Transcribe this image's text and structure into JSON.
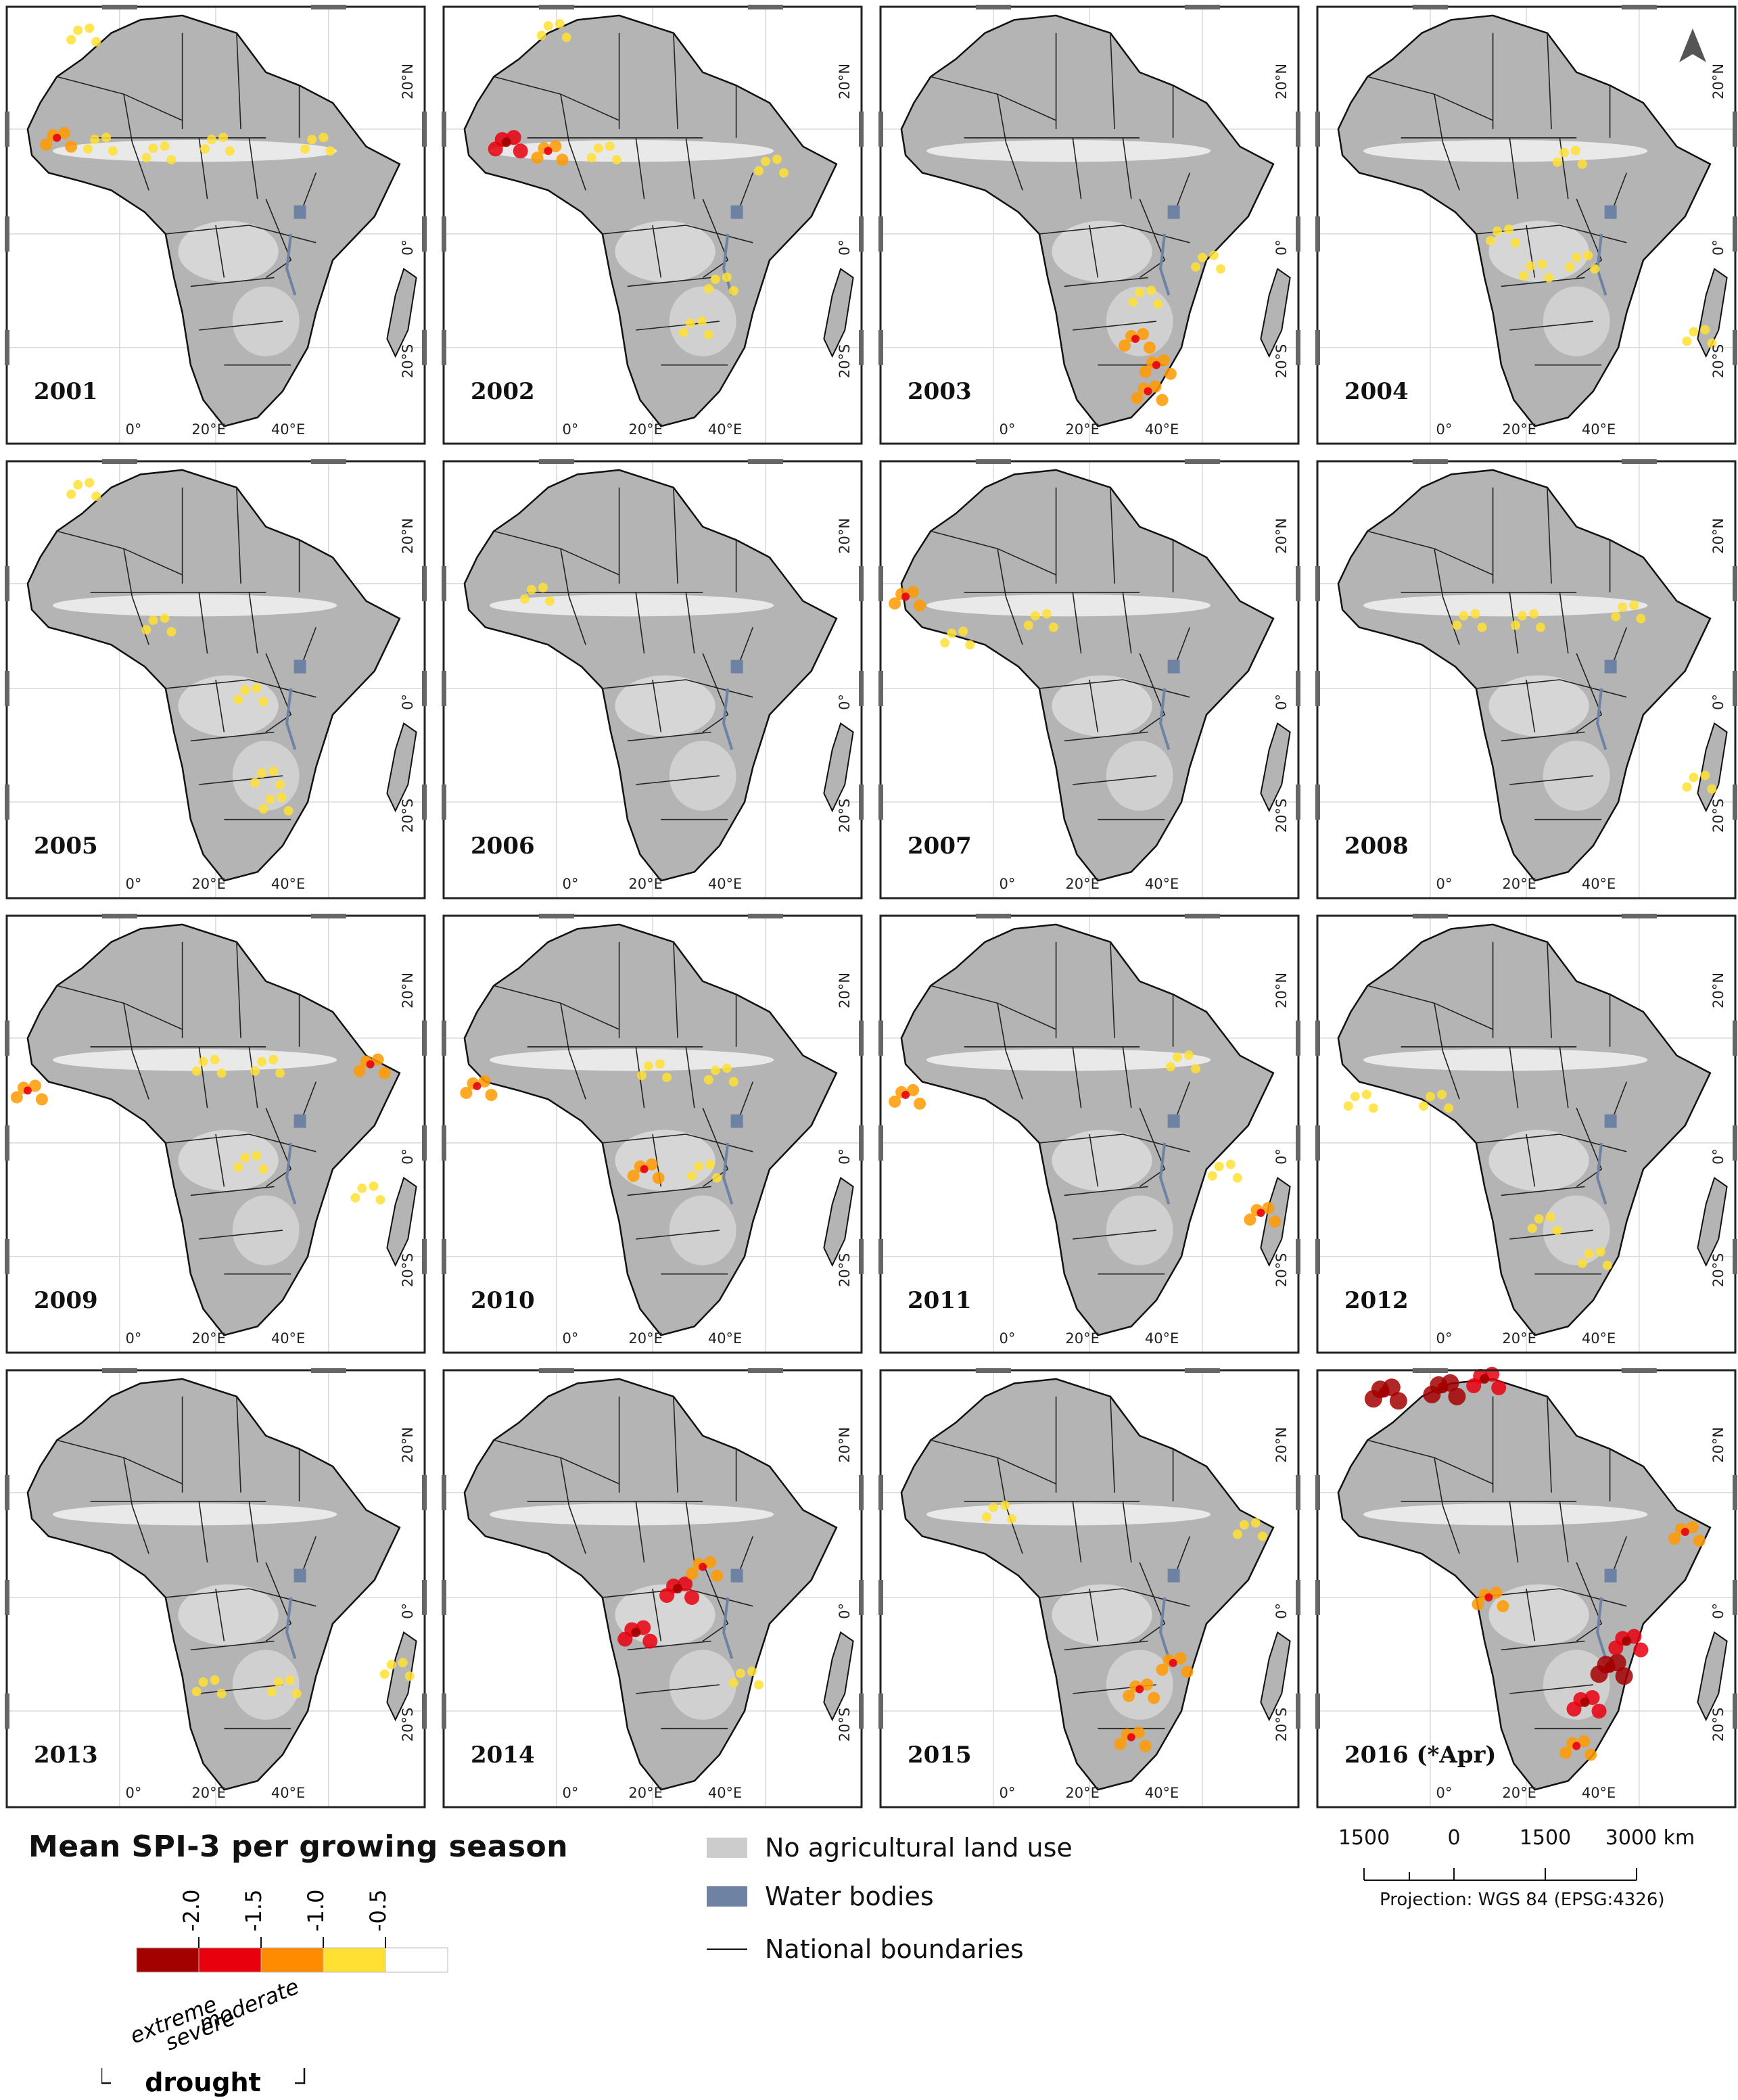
{
  "panels": [
    {
      "year": "2001",
      "hot": [
        [
          0.18,
          0.06,
          1
        ],
        [
          0.12,
          0.3,
          2
        ],
        [
          0.22,
          0.31,
          1
        ],
        [
          0.36,
          0.33,
          1
        ],
        [
          0.5,
          0.31,
          1
        ],
        [
          0.74,
          0.31,
          1
        ]
      ]
    },
    {
      "year": "2002",
      "hot": [
        [
          0.26,
          0.05,
          1
        ],
        [
          0.15,
          0.31,
          3
        ],
        [
          0.25,
          0.33,
          2
        ],
        [
          0.38,
          0.33,
          1
        ],
        [
          0.78,
          0.36,
          1
        ],
        [
          0.6,
          0.73,
          1
        ],
        [
          0.66,
          0.63,
          1
        ]
      ]
    },
    {
      "year": "2003",
      "hot": [
        [
          0.61,
          0.76,
          2
        ],
        [
          0.66,
          0.82,
          2
        ],
        [
          0.64,
          0.88,
          2
        ],
        [
          0.78,
          0.58,
          1
        ],
        [
          0.63,
          0.66,
          1
        ]
      ]
    },
    {
      "year": "2004",
      "hot": [
        [
          0.44,
          0.52,
          1
        ],
        [
          0.52,
          0.6,
          1
        ],
        [
          0.63,
          0.58,
          1
        ],
        [
          0.6,
          0.34,
          1
        ],
        [
          0.91,
          0.75,
          1
        ]
      ]
    },
    {
      "year": "2005",
      "hot": [
        [
          0.18,
          0.06,
          1
        ],
        [
          0.36,
          0.37,
          1
        ],
        [
          0.58,
          0.53,
          1
        ],
        [
          0.62,
          0.72,
          1
        ],
        [
          0.64,
          0.78,
          1
        ]
      ]
    },
    {
      "year": "2006",
      "hot": [
        [
          0.22,
          0.3,
          1
        ]
      ]
    },
    {
      "year": "2007",
      "hot": [
        [
          0.06,
          0.31,
          2
        ],
        [
          0.18,
          0.4,
          1
        ],
        [
          0.38,
          0.36,
          1
        ]
      ]
    },
    {
      "year": "2008",
      "hot": [
        [
          0.36,
          0.36,
          1
        ],
        [
          0.5,
          0.36,
          1
        ],
        [
          0.74,
          0.34,
          1
        ],
        [
          0.91,
          0.73,
          1
        ]
      ]
    },
    {
      "year": "2009",
      "hot": [
        [
          0.05,
          0.4,
          2
        ],
        [
          0.48,
          0.34,
          1
        ],
        [
          0.62,
          0.34,
          1
        ],
        [
          0.87,
          0.34,
          2
        ],
        [
          0.58,
          0.56,
          1
        ],
        [
          0.86,
          0.63,
          1
        ]
      ]
    },
    {
      "year": "2010",
      "hot": [
        [
          0.08,
          0.39,
          2
        ],
        [
          0.5,
          0.35,
          1
        ],
        [
          0.66,
          0.36,
          1
        ],
        [
          0.48,
          0.58,
          2
        ],
        [
          0.62,
          0.58,
          1
        ]
      ]
    },
    {
      "year": "2011",
      "hot": [
        [
          0.06,
          0.41,
          2
        ],
        [
          0.72,
          0.33,
          1
        ],
        [
          0.82,
          0.58,
          1
        ],
        [
          0.91,
          0.68,
          2
        ]
      ]
    },
    {
      "year": "2012",
      "hot": [
        [
          0.1,
          0.42,
          1
        ],
        [
          0.28,
          0.42,
          1
        ],
        [
          0.54,
          0.7,
          1
        ],
        [
          0.66,
          0.78,
          1
        ]
      ]
    },
    {
      "year": "2013",
      "hot": [
        [
          0.48,
          0.72,
          1
        ],
        [
          0.66,
          0.72,
          1
        ],
        [
          0.93,
          0.68,
          1
        ]
      ]
    },
    {
      "year": "2014",
      "hot": [
        [
          0.56,
          0.5,
          3
        ],
        [
          0.46,
          0.6,
          3
        ],
        [
          0.62,
          0.45,
          2
        ],
        [
          0.72,
          0.7,
          1
        ]
      ]
    },
    {
      "year": "2015",
      "hot": [
        [
          0.28,
          0.32,
          1
        ],
        [
          0.62,
          0.73,
          2
        ],
        [
          0.7,
          0.67,
          2
        ],
        [
          0.6,
          0.84,
          2
        ],
        [
          0.88,
          0.36,
          1
        ]
      ]
    },
    {
      "year": "2016 (*Apr)",
      "hot": [
        [
          0.16,
          0.05,
          4
        ],
        [
          0.3,
          0.04,
          4
        ],
        [
          0.4,
          0.02,
          3
        ],
        [
          0.7,
          0.68,
          4
        ],
        [
          0.64,
          0.76,
          3
        ],
        [
          0.74,
          0.62,
          3
        ],
        [
          0.62,
          0.86,
          2
        ],
        [
          0.41,
          0.52,
          2
        ],
        [
          0.88,
          0.37,
          2
        ]
      ]
    }
  ],
  "axes": {
    "lon": [
      "0°",
      "20°E",
      "40°E"
    ],
    "lat": [
      "20°N",
      "0°",
      "20°S"
    ]
  },
  "legend": {
    "title": "Mean SPI-3 per growing season",
    "ticks": [
      "-2.0",
      "-1.5",
      "-1.0",
      "-0.5"
    ],
    "class_colors": [
      "#a30000",
      "#e8000e",
      "#ff8c00",
      "#ffe033",
      "#ffffff"
    ],
    "categories": [
      "extreme",
      "severe",
      "moderate"
    ],
    "group_label": "drought",
    "items": [
      {
        "label": "No agricultural land use",
        "color": "#cccccc"
      },
      {
        "label": "Water bodies",
        "color": "#6e82a3"
      },
      {
        "label": "National boundaries",
        "color": "#111111"
      }
    ]
  },
  "scale": {
    "labels": [
      "1500",
      "0",
      "1500",
      "3000 km"
    ],
    "projection": "Projection: WGS 84 (EPSG:4326)"
  },
  "colors": {
    "land": "#b4b4b4",
    "agri": "#f2f2f2",
    "water": "#6e82a3",
    "frame": "#222222",
    "mild": "#ffe033",
    "moderate": "#ff9a00",
    "severe": "#e8000e",
    "extreme": "#a30000"
  }
}
